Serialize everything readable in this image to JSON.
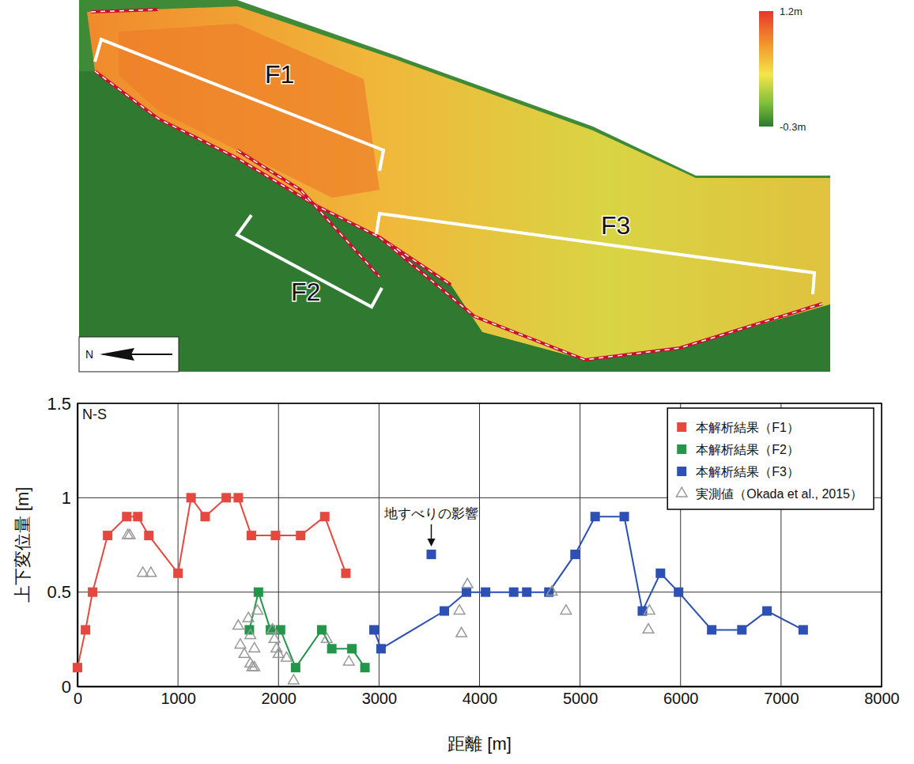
{
  "map": {
    "labels": [
      "F1",
      "F2",
      "F3"
    ],
    "north_label": "N",
    "colorbar": {
      "range": [
        -0.3,
        1.2
      ],
      "ticks": [
        {
          "value": 1.2,
          "label": "1.2m"
        },
        {
          "value": -0.3,
          "label": "-0.3m"
        }
      ]
    }
  },
  "chart_data": {
    "type": "line",
    "title": "N-S",
    "x_label": "距離 [m]",
    "y_label": "上下変位量 [m]",
    "xlim": [
      0,
      8000
    ],
    "xticks": [
      0,
      1000,
      2000,
      3000,
      4000,
      5000,
      6000,
      7000,
      8000
    ],
    "ylim": [
      0,
      1.5
    ],
    "yticks": [
      0,
      0.5,
      1,
      1.5
    ],
    "grid": true,
    "legend": "upper right",
    "series": [
      {
        "name": "本解析結果（F1）",
        "color": "#e5483f",
        "marker": "square",
        "line_style": "solid",
        "x": [
          0,
          80,
          150,
          300,
          490,
          600,
          710,
          1000,
          1130,
          1270,
          1480,
          1600,
          1730,
          1970,
          2220,
          2460,
          2670
        ],
        "values": [
          0.1,
          0.3,
          0.5,
          0.8,
          0.9,
          0.9,
          0.8,
          0.6,
          1.0,
          0.9,
          1.0,
          1.0,
          0.8,
          0.8,
          0.8,
          0.9,
          0.6
        ]
      },
      {
        "name": "本解析結果（F2）",
        "color": "#23964a",
        "marker": "square",
        "line_style": "solid",
        "x": [
          1710,
          1800,
          1920,
          2020,
          2170,
          2430,
          2530,
          2730,
          2860
        ],
        "values": [
          0.3,
          0.5,
          0.3,
          0.3,
          0.1,
          0.3,
          0.2,
          0.2,
          0.1
        ]
      },
      {
        "name": "本解析結果（F3）",
        "color": "#2c50b4",
        "marker": "square",
        "line_style": "solid",
        "x": [
          2950,
          3020,
          3650,
          3870,
          4060,
          4340,
          4470,
          4690,
          4950,
          5150,
          5440,
          5620,
          5800,
          5980,
          6310,
          6610,
          6860,
          7220
        ],
        "values": [
          0.3,
          0.2,
          0.4,
          0.5,
          0.5,
          0.5,
          0.5,
          0.5,
          0.7,
          0.9,
          0.9,
          0.4,
          0.6,
          0.5,
          0.3,
          0.3,
          0.4,
          0.3
        ]
      },
      {
        "name": "実測値（Okada et al., 2015）",
        "type": "scatter",
        "color": "#999999",
        "marker": "triangle",
        "x": [
          500,
          520,
          650,
          730,
          1600,
          1620,
          1660,
          1700,
          1720,
          1720,
          1740,
          1760,
          1760,
          1790,
          1940,
          1960,
          1980,
          2000,
          2080,
          2150,
          2480,
          2700,
          3800,
          3820,
          3880,
          4720,
          4860,
          5680,
          5690
        ],
        "values": [
          0.8,
          0.8,
          0.6,
          0.6,
          0.32,
          0.22,
          0.17,
          0.36,
          0.27,
          0.12,
          0.1,
          0.1,
          0.2,
          0.4,
          0.3,
          0.25,
          0.2,
          0.17,
          0.15,
          0.03,
          0.25,
          0.13,
          0.4,
          0.28,
          0.54,
          0.5,
          0.4,
          0.3,
          0.4
        ]
      }
    ],
    "annotations": [
      {
        "text": "地すべりの影響",
        "x": 3520,
        "y": 0.7,
        "color": "#2c50b4",
        "marker": "square"
      }
    ]
  }
}
